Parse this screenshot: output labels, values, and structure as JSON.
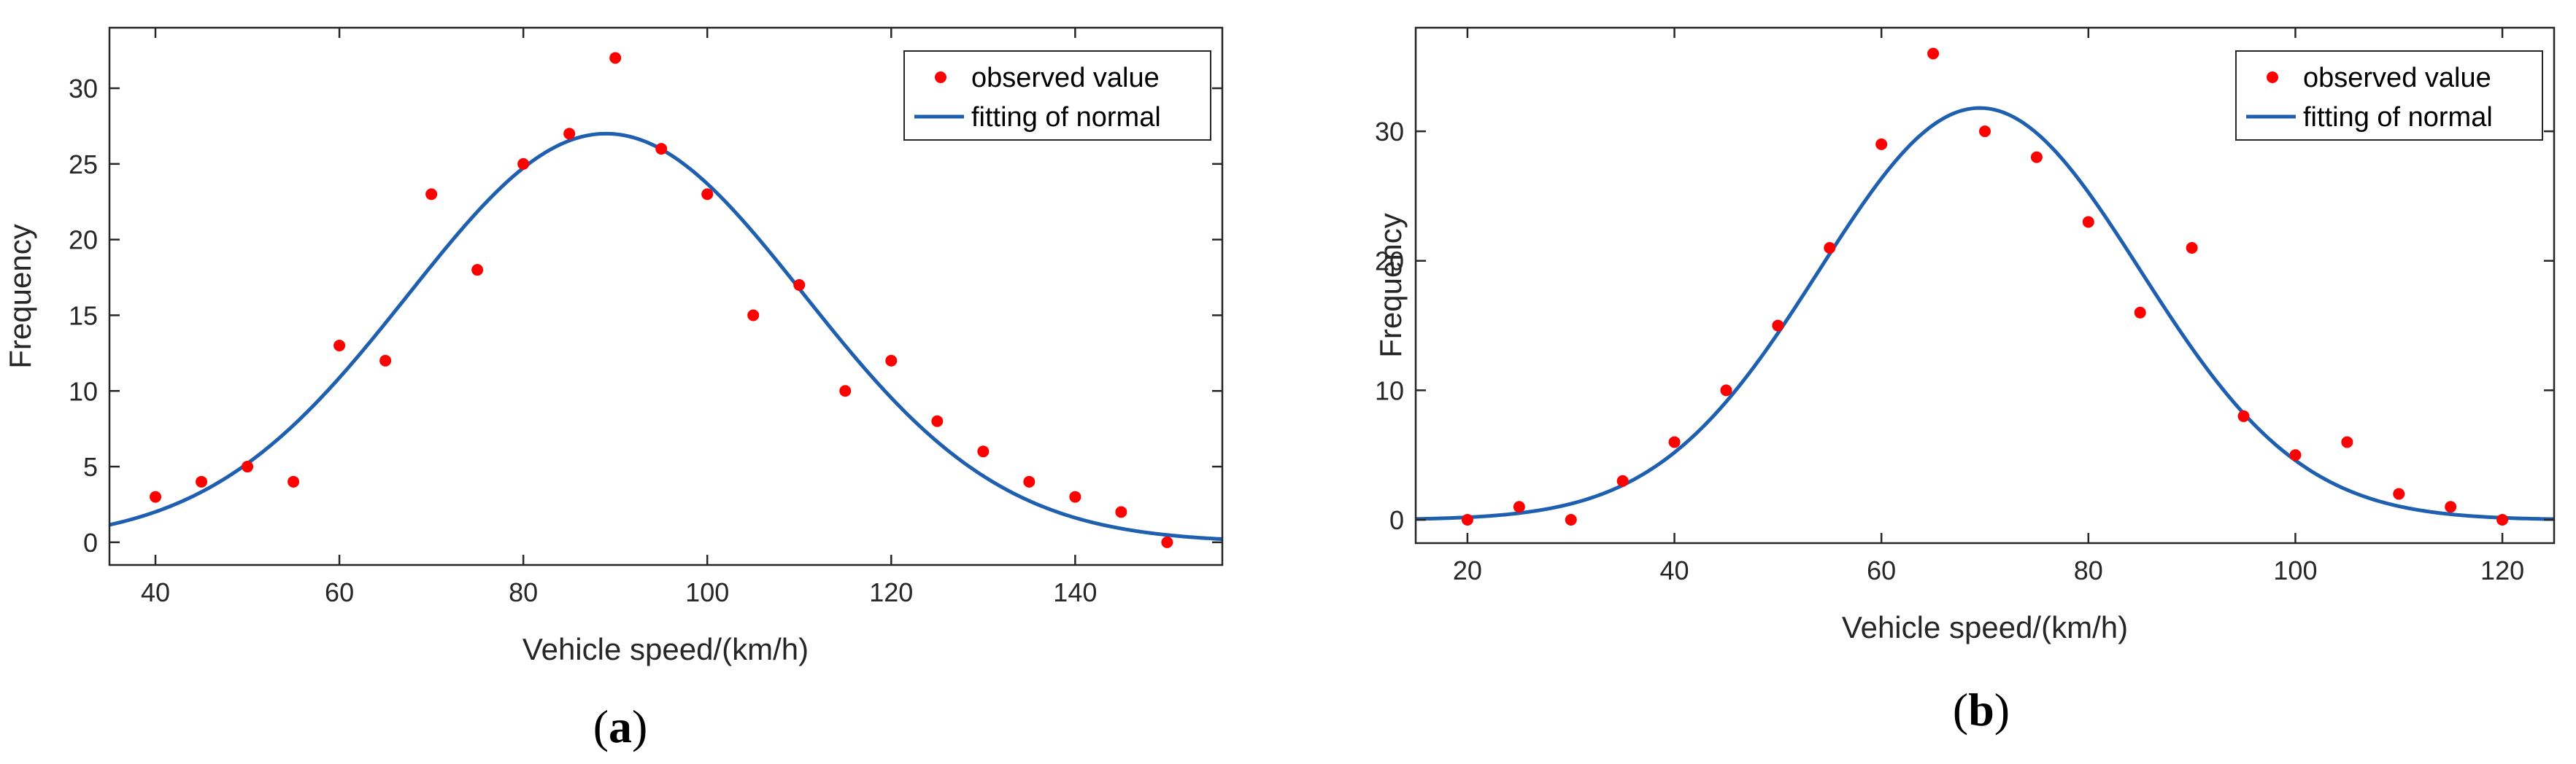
{
  "chart_data": [
    {
      "type": "scatter",
      "panel_label": "a",
      "xlabel": "Vehicle speed/(km/h)",
      "ylabel": "Frequency",
      "xlim": [
        35,
        156
      ],
      "ylim": [
        -1.5,
        34
      ],
      "xticks": [
        40,
        60,
        80,
        100,
        120,
        140
      ],
      "yticks": [
        0,
        5,
        10,
        15,
        20,
        25,
        30
      ],
      "legend_position": "top-right",
      "series": [
        {
          "name": "observed value",
          "kind": "scatter",
          "color": "#ff0000",
          "x": [
            40,
            45,
            50,
            55,
            60,
            65,
            70,
            75,
            80,
            85,
            90,
            95,
            100,
            105,
            110,
            115,
            120,
            125,
            130,
            135,
            140,
            145,
            150
          ],
          "y": [
            3,
            4,
            5,
            4,
            13,
            12,
            23,
            18,
            25,
            27,
            32,
            26,
            23,
            15,
            17,
            10,
            12,
            8,
            6,
            4,
            3,
            2,
            0
          ]
        },
        {
          "name": "fitting of normal",
          "kind": "line",
          "color": "#1f5fb0",
          "normal_fit": {
            "peak": 27,
            "mean": 89,
            "sd": 21.5
          }
        }
      ]
    },
    {
      "type": "scatter",
      "panel_label": "b",
      "xlabel": "Vehicle speed/(km/h)",
      "ylabel": "Frequency",
      "xlim": [
        15,
        125
      ],
      "ylim": [
        -1.8,
        38
      ],
      "xticks": [
        20,
        40,
        60,
        80,
        100,
        120
      ],
      "yticks": [
        0,
        10,
        20,
        30
      ],
      "legend_position": "top-right",
      "series": [
        {
          "name": "observed value",
          "kind": "scatter",
          "color": "#ff0000",
          "x": [
            20,
            25,
            30,
            35,
            40,
            45,
            50,
            55,
            60,
            65,
            70,
            75,
            80,
            85,
            90,
            95,
            100,
            105,
            110,
            115,
            120
          ],
          "y": [
            0,
            1,
            0,
            3,
            6,
            10,
            15,
            21,
            29,
            36,
            30,
            28,
            23,
            16,
            21,
            8,
            5,
            6,
            2,
            1,
            0
          ]
        },
        {
          "name": "fitting of normal",
          "kind": "line",
          "color": "#1f5fb0",
          "normal_fit": {
            "peak": 31.8,
            "mean": 69.5,
            "sd": 15.5
          }
        }
      ]
    }
  ]
}
